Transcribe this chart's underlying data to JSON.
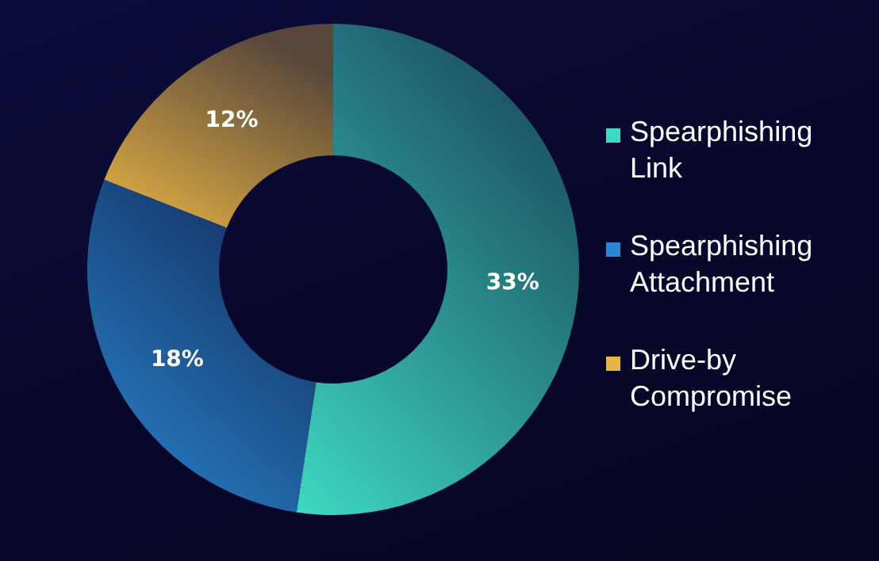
{
  "chart_data": {
    "type": "donut",
    "categories": [
      "Spearphishing Link",
      "Spearphishing Attachment",
      "Drive-by Compromise"
    ],
    "values": [
      33,
      18,
      12
    ],
    "value_labels": [
      "33%",
      "18%",
      "12%"
    ],
    "colors": [
      "#3fd9c2",
      "#2a86cf",
      "#e8b545"
    ],
    "legend": "right"
  }
}
